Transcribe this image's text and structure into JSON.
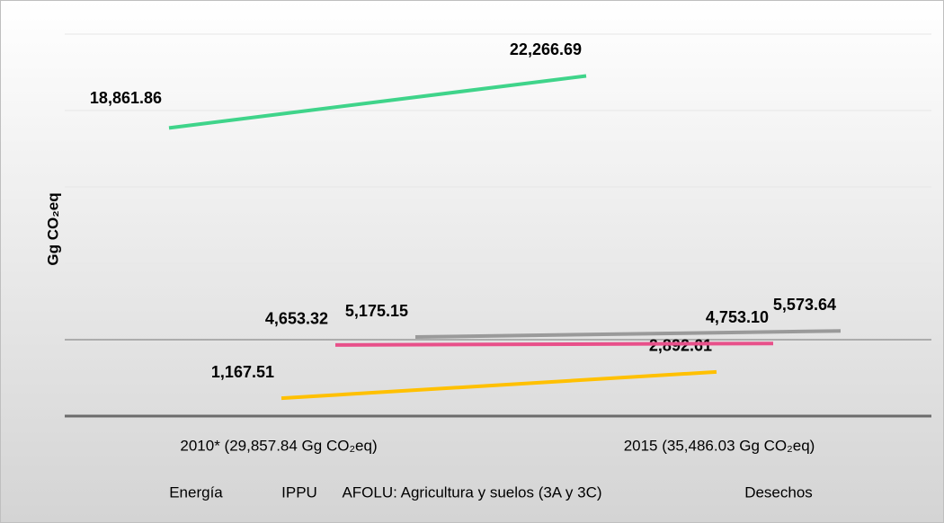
{
  "chart_data": {
    "type": "line",
    "y_label": "Gg CO₂eq",
    "categories": [
      "2010* (29,857.84 Gg CO₂eq)",
      "2015 (35,486.03 Gg CO₂eq)"
    ],
    "series": [
      {
        "name": "Energía",
        "color": "#3fd48a",
        "values": [
          18861.86,
          22266.69
        ],
        "value_labels": [
          "18,861.86",
          "22,266.69"
        ]
      },
      {
        "name": "IPPU",
        "color": "#ffc000",
        "values": [
          1167.51,
          2892.61
        ],
        "value_labels": [
          "1,167.51",
          "2,892.61"
        ]
      },
      {
        "name": "AFOLU: Agricultura y suelos (3A y 3C)",
        "color": "#e8508a",
        "values": [
          4653.32,
          4753.1
        ],
        "value_labels": [
          "4,653.32",
          "4,753.10"
        ]
      },
      {
        "name": "Desechos",
        "color": "#9a9a9a",
        "values": [
          5175.15,
          5573.64
        ],
        "value_labels": [
          "5,175.15",
          "5,573.64"
        ]
      }
    ],
    "ylim": [
      0,
      25000
    ],
    "yticks": [
      0,
      5000,
      10000,
      15000,
      20000,
      25000
    ],
    "grid": true
  }
}
